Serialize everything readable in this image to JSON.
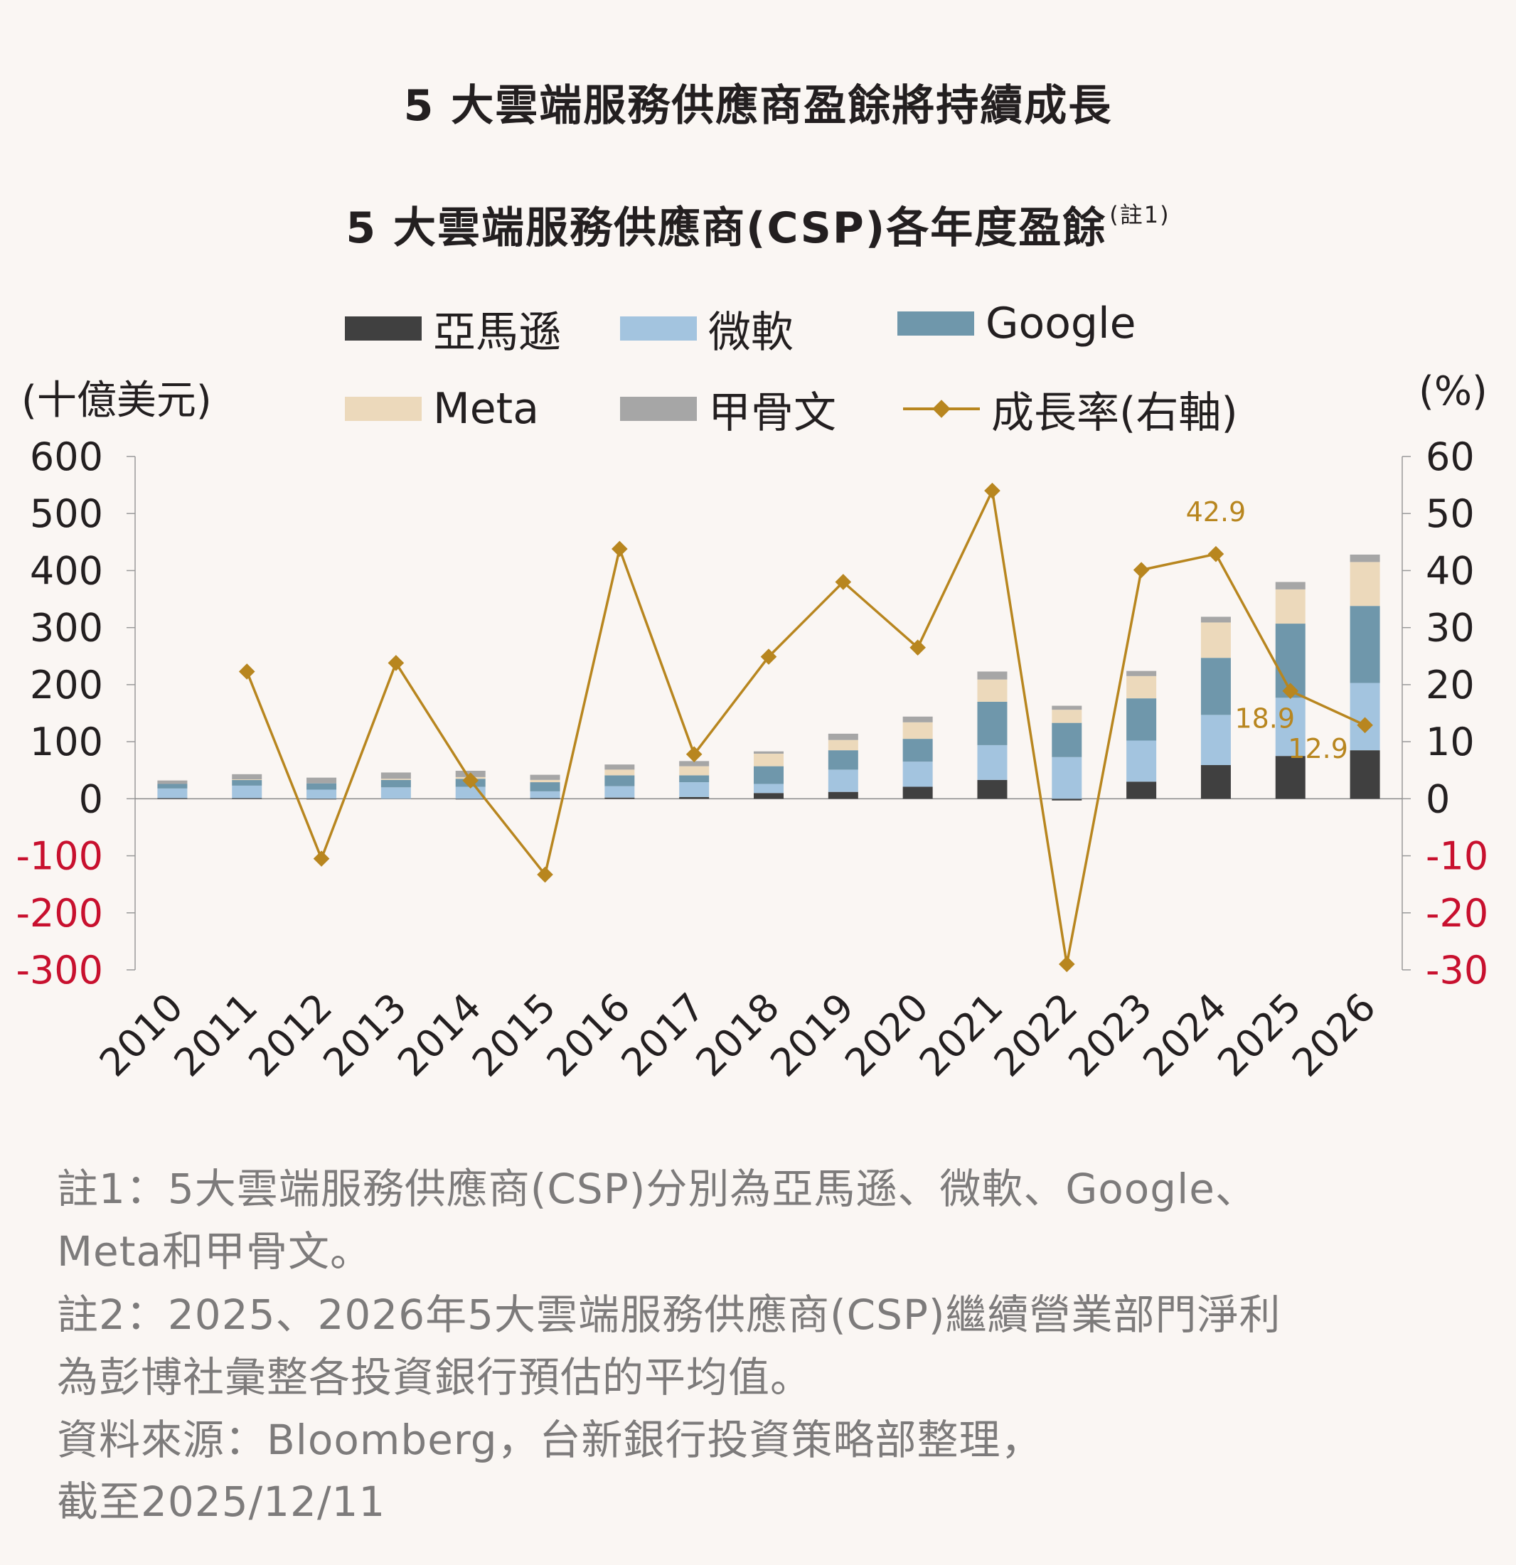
{
  "title": "5 大雲端服務供應商盈餘將持續成長",
  "subtitle": "5 大雲端服務供應商(CSP)各年度盈餘",
  "subtitle_note": "(註1)",
  "colors": {
    "amazon": "#404040",
    "microsoft": "#a3c4df",
    "google": "#6f97ab",
    "meta": "#ecd9bb",
    "oracle": "#a6a6a6",
    "growth": "#b8861f",
    "negative_tick": "#c8102e"
  },
  "notes": [
    "註1：5大雲端服務供應商(CSP)分別為亞馬遜、微軟、Google、",
    "Meta和甲骨文。",
    "註2：2025、2026年5大雲端服務供應商(CSP)繼續營業部門淨利",
    "為彭博社彙整各投資銀行預估的平均值。",
    "資料來源：Bloomberg，台新銀行投資策略部整理，",
    "截至2025/12/11"
  ],
  "chart_data": {
    "type": "bar",
    "stacked": true,
    "title": "5 大雲端服務供應商(CSP)各年度盈餘",
    "ylabel": "(十億美元)",
    "y2label": "(%)",
    "ylim": [
      -300,
      600
    ],
    "y2lim": [
      -30,
      60
    ],
    "yticks": [
      600,
      500,
      400,
      300,
      200,
      100,
      0,
      -100,
      -200,
      -300
    ],
    "y2ticks": [
      60,
      50,
      40,
      30,
      20,
      10,
      0,
      -10,
      -20,
      -30
    ],
    "categories": [
      "2010",
      "2011",
      "2012",
      "2013",
      "2014",
      "2015",
      "2016",
      "2017",
      "2018",
      "2019",
      "2020",
      "2021",
      "2022",
      "2023",
      "2024",
      "2025",
      "2026"
    ],
    "series": [
      {
        "name": "亞馬遜",
        "color_key": "amazon",
        "values": [
          1,
          1,
          -1,
          0,
          -1,
          1,
          2,
          3,
          10,
          12,
          21,
          33,
          -3,
          30,
          59,
          75,
          85
        ]
      },
      {
        "name": "微軟",
        "color_key": "microsoft",
        "values": [
          17,
          22,
          16,
          20,
          21,
          12,
          20,
          26,
          16,
          39,
          44,
          61,
          73,
          72,
          88,
          102,
          118
        ]
      },
      {
        "name": "Google",
        "color_key": "google",
        "values": [
          8,
          10,
          11,
          13,
          14,
          16,
          19,
          12,
          31,
          34,
          40,
          76,
          60,
          74,
          100,
          130,
          135
        ]
      },
      {
        "name": "Meta",
        "color_key": "meta",
        "values": [
          0,
          1,
          0,
          2,
          3,
          4,
          10,
          16,
          22,
          18,
          29,
          39,
          23,
          39,
          62,
          60,
          77
        ]
      },
      {
        "name": "甲骨文",
        "color_key": "oracle",
        "values": [
          6,
          9,
          10,
          11,
          11,
          9,
          9,
          9,
          4,
          11,
          10,
          14,
          7,
          9,
          10,
          13,
          13
        ]
      }
    ],
    "line_series": {
      "name": "成長率(右軸)",
      "axis": "right",
      "values": [
        null,
        22.3,
        -10.5,
        23.8,
        3.2,
        -13.3,
        43.8,
        7.8,
        24.9,
        38.0,
        26.5,
        54.0,
        -29.0,
        40.1,
        42.9,
        18.9,
        12.9
      ]
    },
    "annotations": [
      {
        "category": "2024",
        "text": "42.9"
      },
      {
        "category": "2025",
        "text": "18.9"
      },
      {
        "category": "2026",
        "text": "12.9"
      }
    ],
    "legend_placement": "top",
    "grid": false
  }
}
